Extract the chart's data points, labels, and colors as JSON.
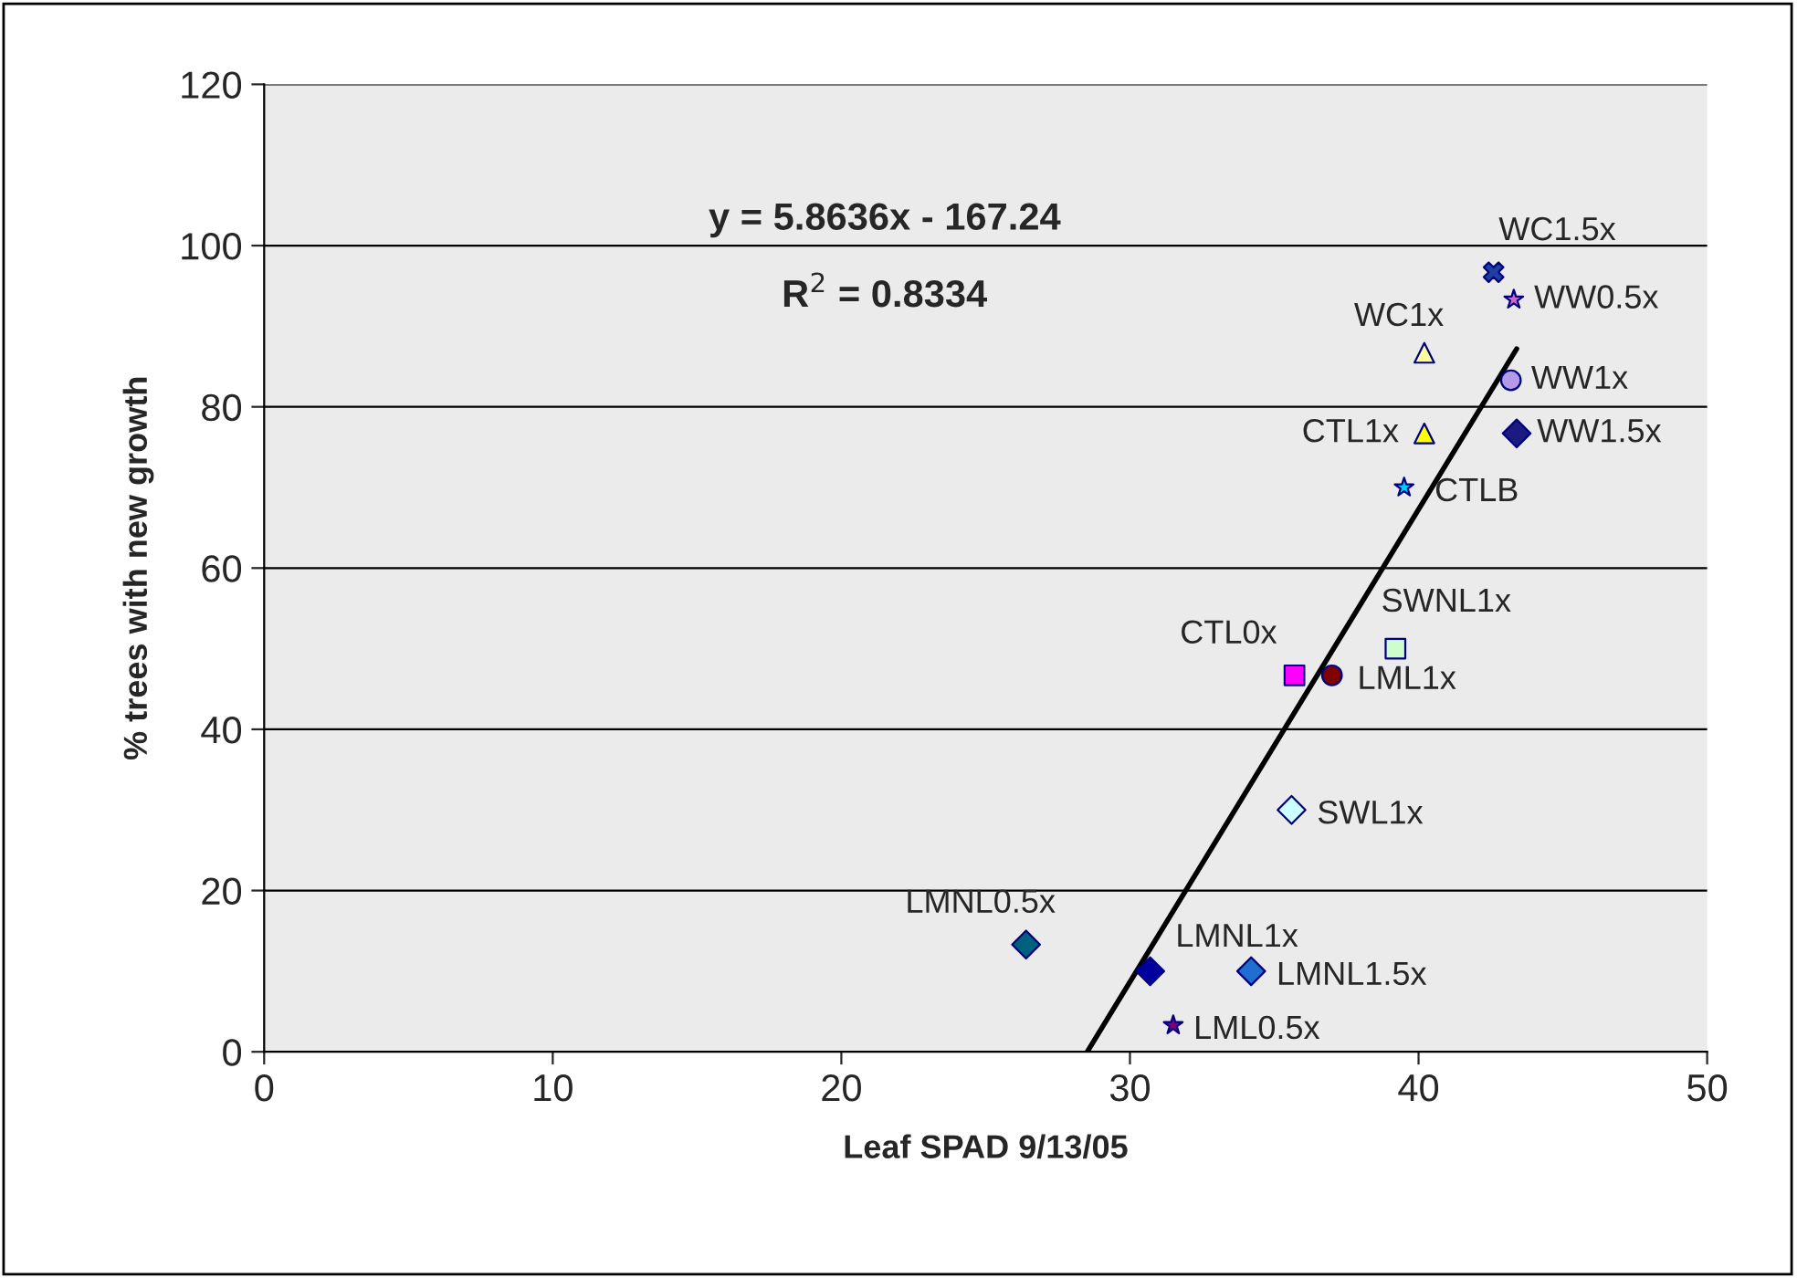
{
  "chart_data": {
    "type": "scatter",
    "xlabel": "Leaf SPAD 9/13/05",
    "ylabel": "% trees with new growth",
    "xlim": [
      0,
      50
    ],
    "xticks": [
      0,
      10,
      20,
      30,
      40,
      50
    ],
    "ylim": [
      0,
      120
    ],
    "yticks": [
      0,
      20,
      40,
      60,
      80,
      100,
      120
    ],
    "grid": "y",
    "legend": false,
    "annotations": [
      "y = 5.8636x - 167.24",
      "R$^{2}$ = 0.8334"
    ],
    "series": [
      {
        "name": "WC1.5x",
        "color": "#1f3fa0",
        "marker": "cross",
        "x": [
          42.6
        ],
        "values": [
          96.7
        ]
      },
      {
        "name": "WW0.5x",
        "color": "#cc66cc",
        "marker": "star",
        "x": [
          43.3
        ],
        "values": [
          93.3
        ]
      },
      {
        "name": "WC1x",
        "color": "#ffff99",
        "marker": "triangle",
        "x": [
          40.2
        ],
        "values": [
          86.7
        ]
      },
      {
        "name": "WW1x",
        "color": "#b399e6",
        "marker": "circle",
        "x": [
          43.2
        ],
        "values": [
          83.3
        ]
      },
      {
        "name": "CTL1x",
        "color": "#ffff00",
        "marker": "triangle",
        "x": [
          40.2
        ],
        "values": [
          76.7
        ]
      },
      {
        "name": "WW1.5x",
        "color": "#1a1a80",
        "marker": "diamond",
        "x": [
          43.4
        ],
        "values": [
          76.7
        ]
      },
      {
        "name": "CTLB",
        "color": "#00ccff",
        "marker": "star",
        "x": [
          39.5
        ],
        "values": [
          70
        ]
      },
      {
        "name": "SWNL1x",
        "color": "#ccffcc",
        "marker": "square",
        "x": [
          39.2
        ],
        "values": [
          50
        ]
      },
      {
        "name": "CTL0x",
        "color": "#ff00ff",
        "marker": "square",
        "x": [
          35.7
        ],
        "values": [
          46.7
        ]
      },
      {
        "name": "LML1x",
        "color": "#800000",
        "marker": "circle",
        "x": [
          37.0
        ],
        "values": [
          46.7
        ]
      },
      {
        "name": "SWL1x",
        "color": "#ccffff",
        "marker": "diamond",
        "x": [
          35.6
        ],
        "values": [
          30
        ]
      },
      {
        "name": "LMNL0.5x",
        "color": "#006080",
        "marker": "diamond",
        "x": [
          26.4
        ],
        "values": [
          13.3
        ]
      },
      {
        "name": "LMNL1x",
        "color": "#0000a0",
        "marker": "diamond",
        "x": [
          30.7
        ],
        "values": [
          10
        ]
      },
      {
        "name": "LMNL1.5x",
        "color": "#1f6fd0",
        "marker": "diamond",
        "x": [
          34.2
        ],
        "values": [
          10
        ]
      },
      {
        "name": "LML0.5x",
        "color": "#800080",
        "marker": "star",
        "x": [
          31.5
        ],
        "values": [
          3.3
        ]
      },
      {
        "type": "line",
        "color": "#000000",
        "line_style": "solid",
        "marker": "none",
        "x": [
          28.52,
          43.4
        ],
        "values": [
          0,
          87.2
        ]
      }
    ]
  }
}
